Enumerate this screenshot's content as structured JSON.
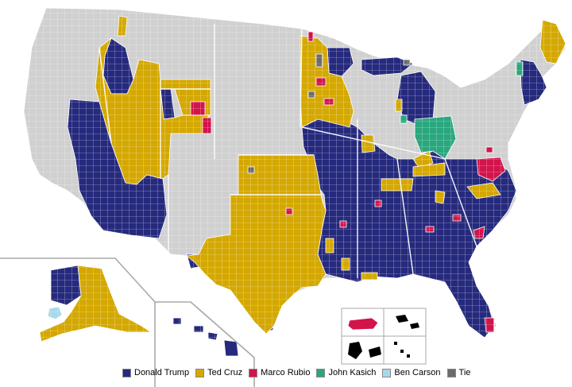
{
  "legend": {
    "items": [
      {
        "label": "Donald Trump",
        "color": "#262a7d"
      },
      {
        "label": "Ted Cruz",
        "color": "#d4a800"
      },
      {
        "label": "Marco Rubio",
        "color": "#d2144b"
      },
      {
        "label": "John Kasich",
        "color": "#2aa77e"
      },
      {
        "label": "Ben Carson",
        "color": "#a8d8ea"
      },
      {
        "label": "Tie",
        "color": "#6b6b6b"
      }
    ]
  },
  "colors": {
    "no_data": "#d0d0d0",
    "border": "#ffffff",
    "background": "#ffffff",
    "inset_frame": "#a8a8a8"
  }
}
